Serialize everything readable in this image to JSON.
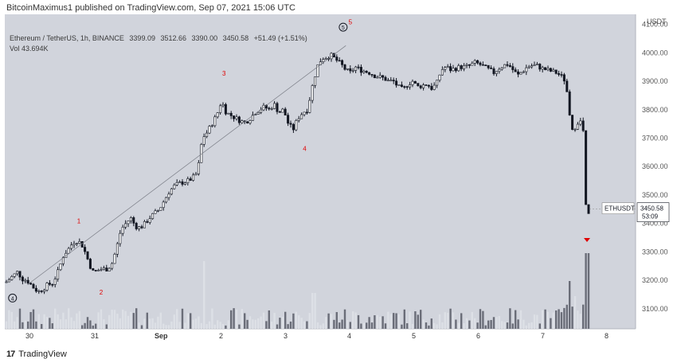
{
  "header": {
    "published": "BitcoinMaximus1 published on TradingView.com, Sep 07, 2021 15:06 UTC"
  },
  "legend": {
    "title": "Ethereum / TetherUS, 1h, BINANCE",
    "open": "3399.09",
    "high": "3512.66",
    "low": "3390.00",
    "close": "3450.58",
    "change": "+51.49 (+1.51%)",
    "volume": "Vol  43.694K"
  },
  "footer": {
    "brand": "TradingView",
    "logo": "17"
  },
  "symbol_tag": {
    "name": "ETHUSDT",
    "price": "3450.58",
    "countdown": "53:09"
  },
  "colors": {
    "background": "#d1d4dc",
    "candle_up": "#ffffff",
    "candle_down": "#131722",
    "vol_up": "#dde0e6",
    "vol_down": "#6a6d78",
    "wave_label": "#e00000",
    "tag_bg": "#ffffff"
  },
  "chart_data": {
    "type": "candlestick",
    "currency": "USDT",
    "y_axis": {
      "ticks": [
        3100,
        3200,
        3300,
        3400,
        3500,
        3600,
        3700,
        3800,
        3900,
        4000,
        4100
      ],
      "ylim": [
        3030,
        4135
      ]
    },
    "x_axis": {
      "ticks": [
        "30",
        "31",
        "Sep",
        "2",
        "3",
        "4",
        "5",
        "6",
        "7",
        "8"
      ]
    },
    "wave_labels": [
      {
        "label": "1",
        "x": "30 18:00",
        "y": 3400
      },
      {
        "label": "2",
        "x": "31 02:00",
        "y": 3150
      },
      {
        "label": "3",
        "x": "2 00:00",
        "y": 3920
      },
      {
        "label": "4",
        "x": "3 06:00",
        "y": 3655
      },
      {
        "label": "5",
        "x": "3 23:00",
        "y": 4100
      }
    ],
    "circled_labels": [
      {
        "label": "4",
        "x": "29 18:00",
        "y": 3138
      },
      {
        "label": "5",
        "x": "3 21:00",
        "y": 4090
      }
    ],
    "trendline": {
      "from": {
        "x": "30 00:00",
        "y": 3188
      },
      "to": {
        "x": "3 22:00",
        "y": 4025
      }
    },
    "last_price": 3450.58,
    "volume_note": "volume bars shown as relative histogram at bottom"
  }
}
